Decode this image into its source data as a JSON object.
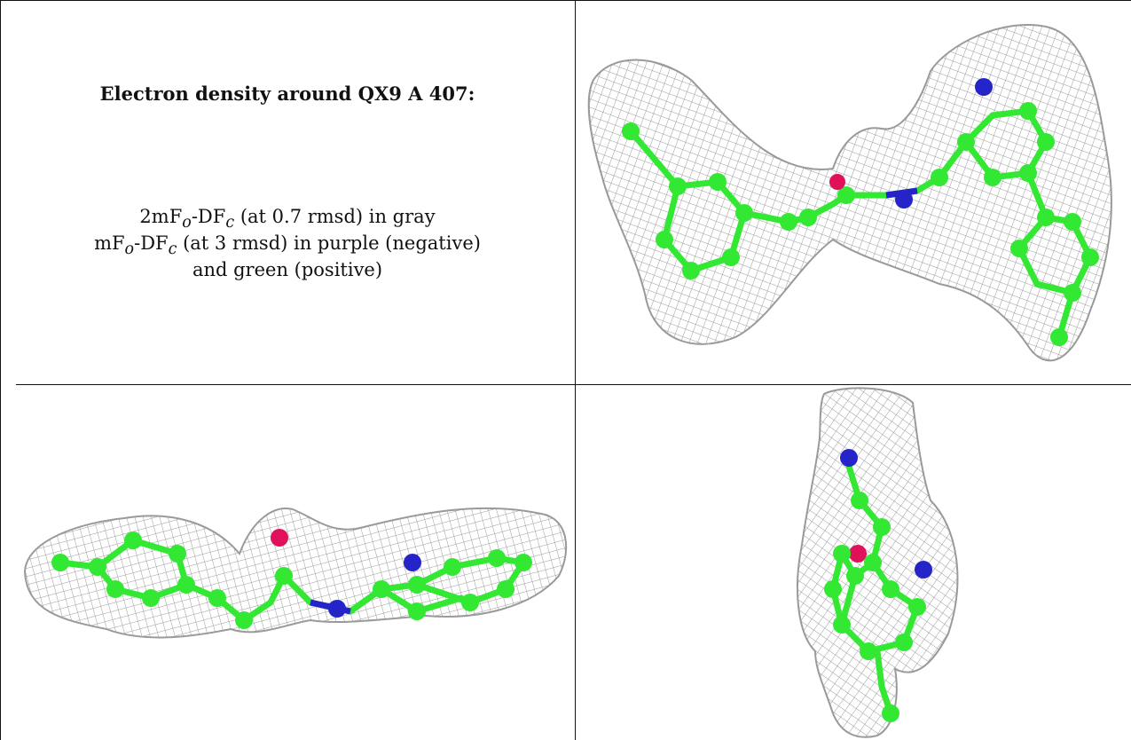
{
  "caption": {
    "title": "Electron density around QX9 A 407:",
    "line1_prefix": "2mF",
    "line1_sub1": "o",
    "line1_mid": "-DF",
    "line1_sub2": "c",
    "line1_suffix": " (at 0.7 rmsd) in gray",
    "line2_prefix": "mF",
    "line2_sub1": "o",
    "line2_mid": "-DF",
    "line2_sub2": "c",
    "line2_suffix": " (at 3 rmsd) in purple (negative)",
    "line3": "and green (positive)"
  },
  "colors": {
    "mesh": "#9a9a9a",
    "carbon": "#33e833",
    "nitrogen": "#2424c8",
    "oxygen": "#e0105a",
    "border": "#111111"
  }
}
